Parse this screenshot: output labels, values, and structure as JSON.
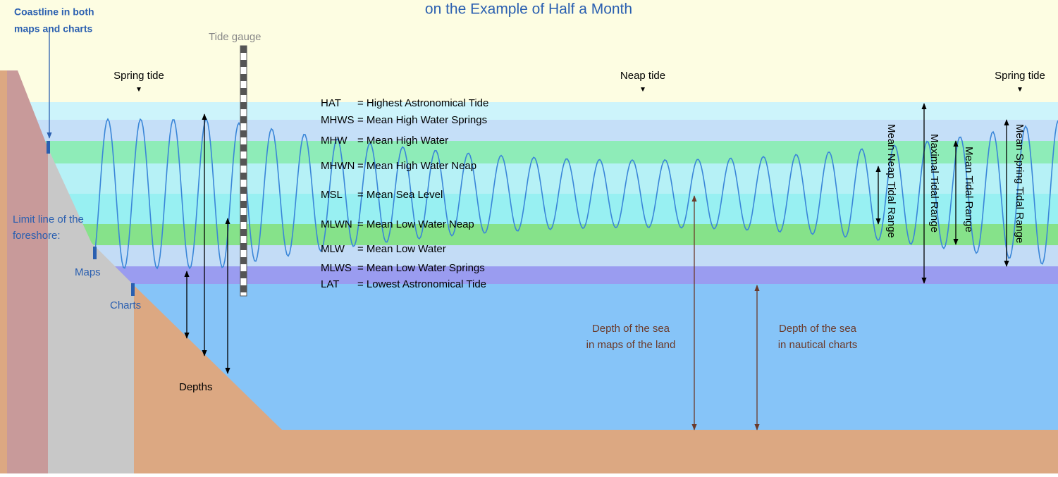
{
  "title": "on the Example of Half a Month",
  "coastline": [
    "Coastline in both",
    "maps and charts"
  ],
  "tide_gauge": "Tide gauge",
  "tides": [
    "Spring tide",
    "Neap tide",
    "Spring tide"
  ],
  "levels": [
    {
      "abbr": "HAT",
      "text": "= Highest Astronomical Tide"
    },
    {
      "abbr": "MHWS",
      "text": "= Mean High Water Springs"
    },
    {
      "abbr": "MHW",
      "text": "= Mean High Water"
    },
    {
      "abbr": "MHWN",
      "text": "= Mean High Water Neap"
    },
    {
      "abbr": "MSL",
      "text": "= Mean Sea Level"
    },
    {
      "abbr": "MLWN",
      "text": "= Mean Low Water Neap"
    },
    {
      "abbr": "MLW",
      "text": "= Mean Low Water"
    },
    {
      "abbr": "MLWS",
      "text": "= Mean Low Water Springs"
    },
    {
      "abbr": "LAT",
      "text": "= Lowest Astronomical Tide"
    }
  ],
  "foreshore": [
    "Limit line of the",
    "foreshore:"
  ],
  "maps": "Maps",
  "charts": "Charts",
  "depths": "Depths",
  "depth_maps": [
    "Depth of the sea",
    "in maps of the land"
  ],
  "depth_charts": [
    "Depth of the sea",
    "in nautical charts"
  ],
  "ranges": [
    "Mean Neap Tidal Range",
    "Maximal Tidal Range",
    "Mean Tidal Range",
    "Mean Spring Tidal Range"
  ]
}
